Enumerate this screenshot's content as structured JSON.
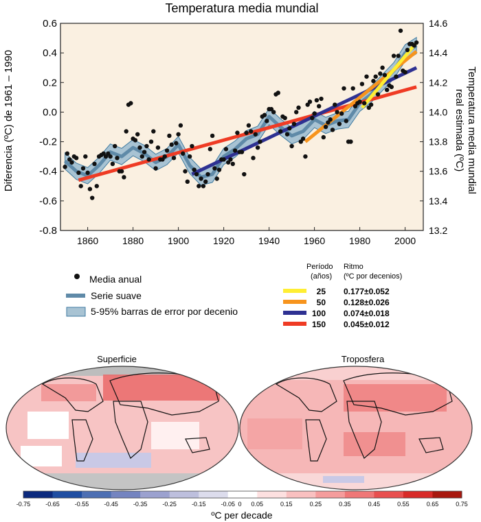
{
  "title": "Temperatura media mundial",
  "y_left_label": "Diferencia (ºC) de 1961 – 1990",
  "y_right_label_line1": "Temperatura media mundial",
  "y_right_label_line2": "real estimada (ºC)",
  "legend": {
    "annual": "Media anual",
    "smooth": "Serie suave",
    "band": "5-95% barras de error por decenio"
  },
  "trend_table": {
    "col1_header_line1": "Período",
    "col1_header_line2": "(años)",
    "col2_header_line1": "Ritmo",
    "col2_header_line2": "(ºC por decenios)",
    "rows": [
      {
        "period": "25",
        "rate": "0.177±0.052",
        "color": "#ffee33"
      },
      {
        "period": "50",
        "rate": "0.128±0.026",
        "color": "#f7941d"
      },
      {
        "period": "100",
        "rate": "0.074±0.018",
        "color": "#2e3192"
      },
      {
        "period": "150",
        "rate": "0.045±0.012",
        "color": "#ef3b24"
      }
    ]
  },
  "maps": {
    "left_title": "Superficie",
    "right_title": "Troposfera"
  },
  "colorbar": {
    "label": "ºC per decade",
    "ticks": [
      "-0.75",
      "-0.65",
      "-0.55",
      "-0.45",
      "-0.35",
      "-0.25",
      "-0.15",
      "-0.05",
      "0",
      "0.05",
      "0.15",
      "0.25",
      "0.35",
      "0.45",
      "0.55",
      "0.65",
      "0.75"
    ],
    "colors": [
      "#0c2a7e",
      "#1f4ea2",
      "#4d6fb3",
      "#7484c0",
      "#9ba1cf",
      "#bdbfdd",
      "#dcdcec",
      "#ffffff",
      "#fde0e0",
      "#f9c0c0",
      "#f59c9c",
      "#ef7777",
      "#e84f4f",
      "#d82a28",
      "#a8180f"
    ]
  },
  "chart_data": {
    "type": "line",
    "title": "Temperatura media mundial",
    "ylabel_left": "Diferencia (ºC) de 1961 – 1990",
    "ylabel_right": "Temperatura media mundial real estimada (ºC)",
    "xlim": [
      1848,
      2008
    ],
    "ylim": [
      -0.8,
      0.6
    ],
    "ylim_right": [
      13.2,
      14.6
    ],
    "x_ticks": [
      1860,
      1880,
      1900,
      1920,
      1940,
      1960,
      1980,
      2000
    ],
    "y_ticks": [
      -0.8,
      -0.6,
      -0.4,
      -0.2,
      0.0,
      0.2,
      0.4,
      0.6
    ],
    "y_right_ticks": [
      13.2,
      13.4,
      13.6,
      13.8,
      14.0,
      14.2,
      14.4,
      14.6
    ],
    "smooth": {
      "x": [
        1850,
        1855,
        1860,
        1865,
        1870,
        1875,
        1880,
        1885,
        1890,
        1895,
        1900,
        1905,
        1910,
        1915,
        1920,
        1925,
        1930,
        1935,
        1940,
        1945,
        1950,
        1955,
        1960,
        1965,
        1970,
        1975,
        1980,
        1985,
        1990,
        1995,
        2000,
        2005
      ],
      "y": [
        -0.33,
        -0.4,
        -0.43,
        -0.36,
        -0.27,
        -0.3,
        -0.24,
        -0.28,
        -0.34,
        -0.3,
        -0.22,
        -0.36,
        -0.44,
        -0.42,
        -0.3,
        -0.25,
        -0.18,
        -0.15,
        -0.03,
        -0.1,
        -0.16,
        -0.13,
        -0.05,
        -0.09,
        -0.06,
        -0.05,
        0.06,
        0.12,
        0.2,
        0.28,
        0.4,
        0.45
      ],
      "band_half_width": 0.055
    },
    "annual": {
      "x": [
        1850,
        1851,
        1852,
        1853,
        1854,
        1855,
        1856,
        1857,
        1858,
        1859,
        1860,
        1861,
        1862,
        1863,
        1864,
        1865,
        1866,
        1867,
        1868,
        1869,
        1870,
        1871,
        1872,
        1873,
        1874,
        1875,
        1876,
        1877,
        1878,
        1879,
        1880,
        1881,
        1882,
        1883,
        1884,
        1885,
        1886,
        1887,
        1888,
        1889,
        1890,
        1891,
        1892,
        1893,
        1894,
        1895,
        1896,
        1897,
        1898,
        1899,
        1900,
        1901,
        1902,
        1903,
        1904,
        1905,
        1906,
        1907,
        1908,
        1909,
        1910,
        1911,
        1912,
        1913,
        1914,
        1915,
        1916,
        1917,
        1918,
        1919,
        1920,
        1921,
        1922,
        1923,
        1924,
        1925,
        1926,
        1927,
        1928,
        1929,
        1930,
        1931,
        1932,
        1933,
        1934,
        1935,
        1936,
        1937,
        1938,
        1939,
        1940,
        1941,
        1942,
        1943,
        1944,
        1945,
        1946,
        1947,
        1948,
        1949,
        1950,
        1951,
        1952,
        1953,
        1954,
        1955,
        1956,
        1957,
        1958,
        1959,
        1960,
        1961,
        1962,
        1963,
        1964,
        1965,
        1966,
        1967,
        1968,
        1969,
        1970,
        1971,
        1972,
        1973,
        1974,
        1975,
        1976,
        1977,
        1978,
        1979,
        1980,
        1981,
        1982,
        1983,
        1984,
        1985,
        1986,
        1987,
        1988,
        1989,
        1990,
        1991,
        1992,
        1993,
        1994,
        1995,
        1996,
        1997,
        1998,
        1999,
        2000,
        2001,
        2002,
        2003,
        2004,
        2005
      ],
      "y": [
        -0.37,
        -0.28,
        -0.32,
        -0.34,
        -0.3,
        -0.31,
        -0.41,
        -0.5,
        -0.38,
        -0.3,
        -0.41,
        -0.52,
        -0.58,
        -0.35,
        -0.5,
        -0.3,
        -0.29,
        -0.28,
        -0.3,
        -0.28,
        -0.3,
        -0.35,
        -0.23,
        -0.31,
        -0.4,
        -0.4,
        -0.44,
        -0.13,
        0.05,
        0.06,
        -0.18,
        -0.19,
        -0.15,
        -0.24,
        -0.3,
        -0.27,
        -0.23,
        -0.32,
        -0.2,
        -0.13,
        -0.38,
        -0.24,
        -0.32,
        -0.32,
        -0.3,
        -0.26,
        -0.16,
        -0.22,
        -0.31,
        -0.21,
        -0.15,
        -0.09,
        -0.28,
        -0.4,
        -0.47,
        -0.3,
        -0.23,
        -0.39,
        -0.42,
        -0.5,
        -0.45,
        -0.5,
        -0.47,
        -0.42,
        -0.25,
        -0.16,
        -0.38,
        -0.45,
        -0.39,
        -0.32,
        -0.32,
        -0.25,
        -0.34,
        -0.32,
        -0.35,
        -0.26,
        -0.14,
        -0.27,
        -0.27,
        -0.42,
        -0.14,
        -0.09,
        -0.13,
        -0.31,
        -0.15,
        -0.24,
        -0.2,
        -0.03,
        -0.02,
        -0.06,
        0.02,
        0.02,
        0.0,
        0.12,
        0.13,
        -0.13,
        -0.03,
        -0.04,
        -0.15,
        -0.11,
        -0.23,
        -0.08,
        0.0,
        0.03,
        -0.2,
        -0.18,
        -0.3,
        0.05,
        0.07,
        -0.04,
        -0.01,
        0.08,
        0.04,
        0.09,
        -0.17,
        -0.1,
        -0.07,
        -0.05,
        -0.12,
        0.05,
        0.0,
        -0.08,
        -0.01,
        0.16,
        -0.06,
        -0.2,
        -0.2,
        0.16,
        0.04,
        0.06,
        0.07,
        0.19,
        0.06,
        0.24,
        0.03,
        0.05,
        0.21,
        0.24,
        0.12,
        0.26,
        0.3,
        0.25,
        0.15,
        0.18,
        0.17,
        0.38,
        0.24,
        0.38,
        0.55,
        0.28,
        0.27,
        0.42,
        0.46,
        0.46,
        0.45,
        0.47
      ],
      "ylim": [
        -0.8,
        0.6
      ]
    },
    "trends": [
      {
        "name": "150",
        "x": [
          1856,
          2005
        ],
        "y": [
          -0.46,
          0.17
        ],
        "color": "#ef3b24"
      },
      {
        "name": "100",
        "x": [
          1906,
          2005
        ],
        "y": [
          -0.42,
          0.3
        ],
        "color": "#2e3192"
      },
      {
        "name": "50",
        "x": [
          1956,
          2005
        ],
        "y": [
          -0.2,
          0.41
        ],
        "color": "#f7941d"
      },
      {
        "name": "25",
        "x": [
          1981,
          2005
        ],
        "y": [
          0.03,
          0.47
        ],
        "color": "#ffee33"
      }
    ]
  }
}
